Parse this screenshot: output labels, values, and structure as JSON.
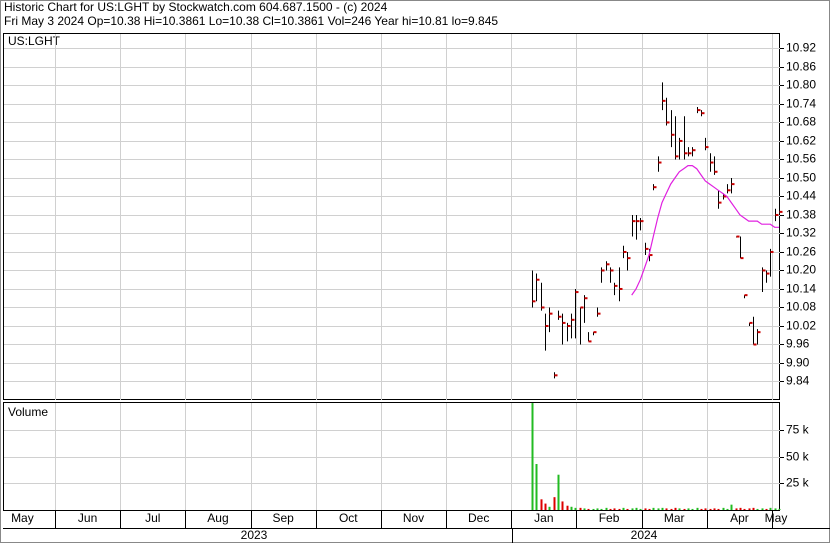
{
  "chart_data": {
    "type": "ohlc",
    "title": "Historic Chart for US:LGHT by Stockwatch.com 604.687.1500 - (c) 2024",
    "subtitle": "Fri May  3 2024  Op=10.38  Hi=10.3861  Lo=10.38  Cl=10.3861  Vol=246  Year hi=10.81  lo=9.845",
    "symbol_label": "US:LGHT",
    "volume_label": "Volume",
    "categories": [
      "May",
      "Jun",
      "Jul",
      "Aug",
      "Sep",
      "Oct",
      "Nov",
      "Dec",
      "Jan",
      "Feb",
      "Mar",
      "Apr",
      "May"
    ],
    "years": [
      "2023",
      "2024"
    ],
    "high": [
      10.2,
      10.19,
      10.16,
      10.06,
      10.08,
      9.87,
      10.07,
      10.06,
      10.03,
      10.06,
      10.14,
      10.08,
      10.12,
      10.0,
      10.0,
      10.08,
      10.21,
      10.23,
      10.21,
      10.16,
      10.21,
      10.28,
      10.26,
      10.38,
      10.38,
      10.37,
      10.29,
      10.27,
      10.48,
      10.57,
      10.81,
      10.76,
      10.72,
      10.7,
      10.63,
      10.7,
      10.6,
      10.6,
      10.73,
      10.72,
      10.63,
      10.58,
      10.57,
      10.46,
      10.45,
      10.48,
      10.5,
      10.31,
      10.31,
      10.12,
      10.03,
      10.05,
      10.01,
      10.21,
      10.2,
      10.27,
      10.4,
      10.39
    ],
    "low": [
      10.08,
      10.1,
      10.07,
      9.94,
      10.0,
      9.85,
      10.04,
      9.96,
      9.97,
      9.98,
      9.98,
      9.96,
      10.03,
      9.97,
      9.99,
      10.05,
      10.16,
      10.2,
      10.16,
      10.12,
      10.1,
      10.24,
      10.2,
      10.31,
      10.3,
      10.33,
      10.25,
      10.23,
      10.46,
      10.52,
      10.72,
      10.67,
      10.6,
      10.56,
      10.56,
      10.56,
      10.57,
      10.57,
      10.71,
      10.7,
      10.59,
      10.52,
      10.51,
      10.4,
      10.43,
      10.45,
      10.45,
      10.31,
      10.24,
      10.11,
      10.02,
      9.96,
      9.96,
      10.13,
      10.16,
      10.18,
      10.36,
      10.38
    ],
    "close": [
      10.1,
      10.17,
      10.08,
      10.02,
      10.06,
      9.86,
      10.05,
      10.03,
      10.02,
      10.04,
      10.13,
      10.08,
      10.11,
      9.97,
      10.0,
      10.06,
      10.2,
      10.22,
      10.2,
      10.15,
      10.14,
      10.26,
      10.24,
      10.36,
      10.36,
      10.36,
      10.27,
      10.25,
      10.47,
      10.55,
      10.75,
      10.68,
      10.64,
      10.57,
      10.62,
      10.58,
      10.58,
      10.59,
      10.72,
      10.71,
      10.6,
      10.55,
      10.52,
      10.42,
      10.44,
      10.46,
      10.48,
      10.31,
      10.24,
      10.12,
      10.03,
      9.96,
      10.0,
      10.2,
      10.19,
      10.26,
      10.38,
      10.39
    ],
    "ma": {
      "color": "#e020e0",
      "values": [
        null,
        null,
        null,
        null,
        null,
        null,
        null,
        null,
        null,
        null,
        null,
        null,
        null,
        null,
        null,
        null,
        null,
        null,
        null,
        null,
        null,
        null,
        null,
        10.12,
        10.14,
        10.17,
        10.21,
        10.25,
        10.31,
        10.37,
        10.42,
        10.45,
        10.48,
        10.5,
        10.52,
        10.53,
        10.54,
        10.54,
        10.53,
        10.51,
        10.49,
        10.48,
        10.47,
        10.46,
        10.45,
        10.44,
        10.42,
        10.4,
        10.38,
        10.37,
        10.36,
        10.36,
        10.36,
        10.35,
        10.35,
        10.35,
        10.34,
        10.34
      ]
    },
    "volume": {
      "values": [
        100000,
        43000,
        10000,
        6000,
        3000,
        12000,
        33000,
        8000,
        4000,
        3000,
        2000,
        2000,
        1500,
        1000,
        1000,
        1500,
        1000,
        2000,
        1000,
        1500,
        1000,
        2000,
        1000,
        1500,
        2000,
        1000,
        1500,
        1000,
        2000,
        1500,
        2000,
        1500,
        1000,
        2000,
        1500,
        1000,
        1500,
        1000,
        2000,
        1000,
        1500,
        1000,
        1500,
        1000,
        2000,
        1000,
        5000,
        1500,
        2000,
        1000,
        1500,
        2000,
        1000,
        1500,
        1000,
        2000,
        1500,
        1000
      ],
      "ylim": [
        0,
        101000
      ],
      "yticks": [
        {
          "value": 75000,
          "label": "75 k"
        },
        {
          "value": 50000,
          "label": "50 k"
        },
        {
          "value": 25000,
          "label": "25 k"
        }
      ],
      "up_color": "#22bb22",
      "down_color": "#dd0000"
    },
    "ylim": [
      9.78,
      10.97
    ],
    "yticks": [
      10.92,
      10.86,
      {
        "value": 10.8,
        "label": "10.80"
      },
      10.74,
      10.68,
      10.62,
      10.56,
      {
        "value": 10.5,
        "label": "10.50"
      },
      10.44,
      10.38,
      10.32,
      10.26,
      {
        "value": 10.2,
        "label": "10.20"
      },
      10.14,
      10.08,
      10.02,
      9.96,
      {
        "value": 9.9,
        "label": "9.90"
      },
      9.84
    ],
    "grid": true,
    "bar_color": "#000000",
    "close_color": "#cc0000"
  }
}
